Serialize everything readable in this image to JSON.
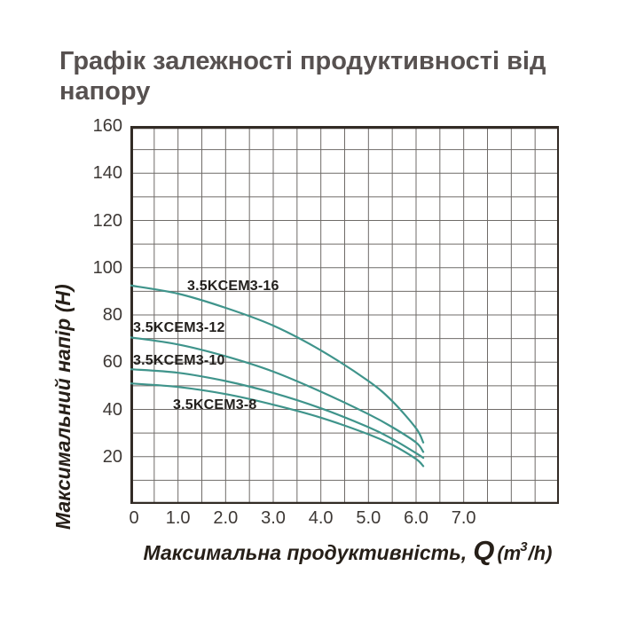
{
  "title": {
    "line1": "Графік залежності продуктивності від",
    "line2": "напору",
    "full": "Графік залежності продуктивності від напору"
  },
  "chart_data": {
    "type": "line",
    "title": "Графік залежності продуктивності від напору",
    "xlabel": "Максимальна продуктивність, Q (m³/h)",
    "xlabel_text": "Максимальна продуктивність,",
    "xlabel_symbol": "Q",
    "xlabel_unit_pre": "(m",
    "xlabel_unit_sup": "3",
    "xlabel_unit_post": "/h)",
    "ylabel": "Максимальний напір (Н)",
    "xlim": [
      0,
      9
    ],
    "ylim": [
      0,
      160
    ],
    "x_grid_step": 0.5,
    "y_grid_step": 10,
    "grid": true,
    "legend_position": "inline-labels",
    "x_ticks": [
      {
        "value": 0,
        "label": "0"
      },
      {
        "value": 1,
        "label": "1.0"
      },
      {
        "value": 2,
        "label": "2.0"
      },
      {
        "value": 3,
        "label": "3.0"
      },
      {
        "value": 4,
        "label": "4.0"
      },
      {
        "value": 5,
        "label": "5.0"
      },
      {
        "value": 6,
        "label": "6.0"
      },
      {
        "value": 7,
        "label": "7.0"
      }
    ],
    "y_ticks": [
      {
        "value": 20,
        "label": "20"
      },
      {
        "value": 40,
        "label": "40"
      },
      {
        "value": 60,
        "label": "60"
      },
      {
        "value": 80,
        "label": "80"
      },
      {
        "value": 100,
        "label": "100"
      },
      {
        "value": 120,
        "label": "120"
      },
      {
        "value": 140,
        "label": "140"
      },
      {
        "value": 160,
        "label": "160"
      }
    ],
    "colors": {
      "curve": "#3f948b",
      "grid": "#6f6b68",
      "frame": "#322b25",
      "title": "#575150",
      "tick": "#3d3835",
      "axis_title": "#261f18",
      "curve_label": "#221f1c"
    },
    "series": [
      {
        "name": "3.5KCEM3-16",
        "points": [
          [
            0,
            92.5
          ],
          [
            1,
            89
          ],
          [
            2,
            83
          ],
          [
            3,
            75.5
          ],
          [
            4,
            65
          ],
          [
            5,
            52
          ],
          [
            5.5,
            43.5
          ],
          [
            6,
            32
          ],
          [
            6.15,
            26
          ]
        ]
      },
      {
        "name": "3.5KCEM3-12",
        "points": [
          [
            0,
            70.5
          ],
          [
            1,
            67.5
          ],
          [
            2,
            62.5
          ],
          [
            3,
            56
          ],
          [
            4,
            47.5
          ],
          [
            5,
            38
          ],
          [
            5.5,
            32.5
          ],
          [
            6,
            26
          ],
          [
            6.15,
            22
          ]
        ]
      },
      {
        "name": "3.5KCEM3-10",
        "points": [
          [
            0,
            57
          ],
          [
            1,
            55.5
          ],
          [
            2,
            52
          ],
          [
            3,
            47
          ],
          [
            4,
            40.5
          ],
          [
            5,
            32.5
          ],
          [
            5.5,
            27.5
          ],
          [
            6,
            21.5
          ],
          [
            6.15,
            19.5
          ]
        ]
      },
      {
        "name": "3.5KCEM3-8",
        "points": [
          [
            0,
            51
          ],
          [
            1,
            49.5
          ],
          [
            2,
            46.5
          ],
          [
            3,
            42
          ],
          [
            4,
            36.5
          ],
          [
            5,
            29.5
          ],
          [
            5.5,
            25
          ],
          [
            6,
            19
          ],
          [
            6.15,
            16
          ]
        ]
      }
    ]
  }
}
